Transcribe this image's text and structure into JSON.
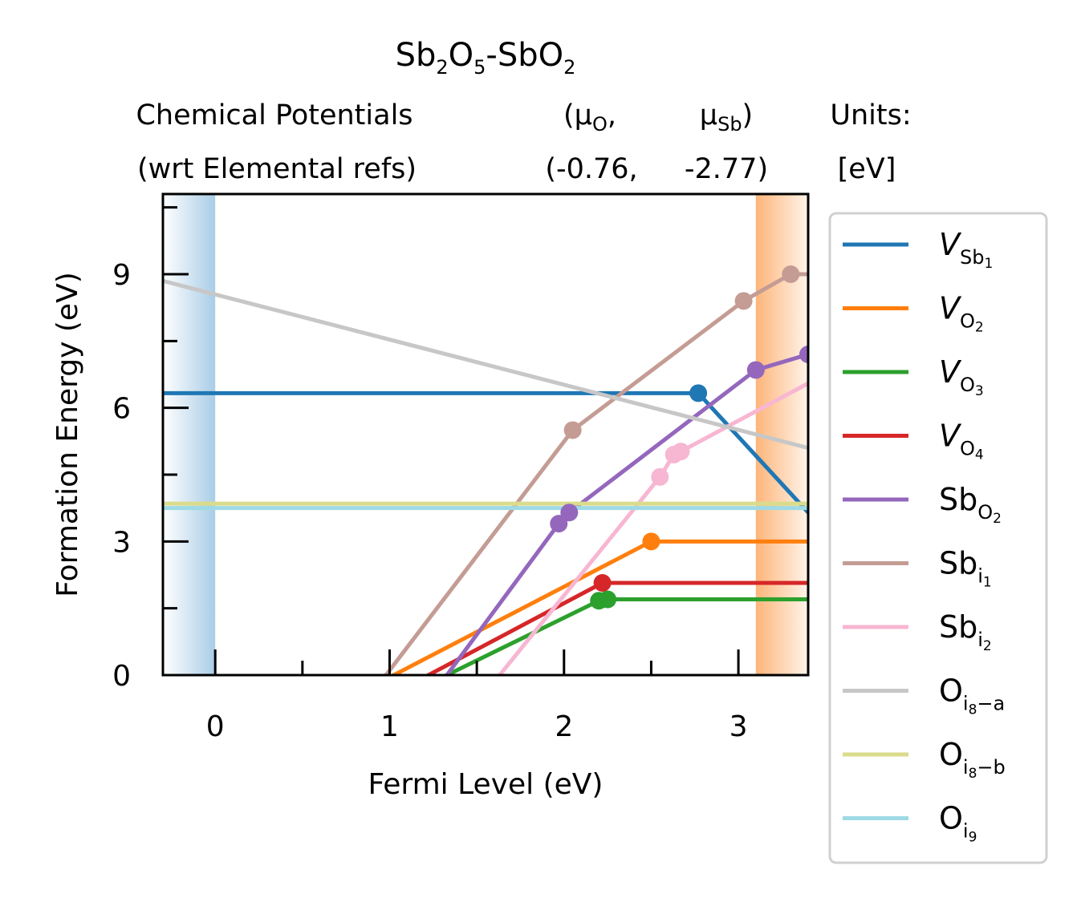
{
  "chart_data": {
    "type": "line",
    "title": {
      "base1": "Sb",
      "sub1": "2",
      "base2": "O",
      "sub2": "5",
      "base3": "-SbO",
      "sub3": "2"
    },
    "header": {
      "col1": [
        "Chemical Potentials",
        "(wrt Elemental refs)"
      ],
      "col2_line1": {
        "text": "(μ",
        "sub": "O",
        "tail": ","
      },
      "col2_line2": "(-0.76,",
      "col3_line1": {
        "text": "μ",
        "sub": "Sb",
        "tail": ")"
      },
      "col3_line2": "-2.77)",
      "col4": [
        "Units:",
        "[eV]"
      ]
    },
    "xlabel": "Fermi Level (eV)",
    "ylabel": "Formation Energy (eV)",
    "xlim": [
      -0.3,
      3.4
    ],
    "ylim": [
      0,
      10.8
    ],
    "xticks": [
      0,
      1,
      2,
      3
    ],
    "yticks": [
      0,
      3,
      6,
      9
    ],
    "vbm": 0,
    "cbm": 3.1,
    "series": [
      {
        "name": {
          "base": "V",
          "italic": true,
          "sub": "Sb",
          "subsub": "1"
        },
        "color": "#1f77b4",
        "points": [
          [
            -0.3,
            6.33
          ],
          [
            2.77,
            6.33
          ],
          [
            3.4,
            3.65
          ]
        ],
        "markers": [
          [
            2.77,
            6.33
          ]
        ]
      },
      {
        "name": {
          "base": "V",
          "italic": true,
          "sub": "O",
          "subsub": "2"
        },
        "color": "#ff7f0e",
        "points": [
          [
            0.95,
            -0.15
          ],
          [
            2.5,
            3.0
          ],
          [
            3.4,
            3.0
          ]
        ],
        "markers": [
          [
            2.5,
            3.0
          ]
        ]
      },
      {
        "name": {
          "base": "V",
          "italic": true,
          "sub": "O",
          "subsub": "3"
        },
        "color": "#2ca02c",
        "points": [
          [
            1.25,
            -0.15
          ],
          [
            2.2,
            1.67
          ],
          [
            2.25,
            1.7
          ],
          [
            3.4,
            1.7
          ]
        ],
        "markers": [
          [
            2.2,
            1.67
          ],
          [
            2.25,
            1.7
          ]
        ]
      },
      {
        "name": {
          "base": "V",
          "italic": true,
          "sub": "O",
          "subsub": "4"
        },
        "color": "#d62728",
        "points": [
          [
            1.15,
            -0.15
          ],
          [
            2.22,
            2.07
          ],
          [
            3.4,
            2.07
          ]
        ],
        "markers": [
          [
            2.22,
            2.07
          ]
        ]
      },
      {
        "name": {
          "base": "Sb",
          "italic": false,
          "sub": "O",
          "subsub": "2"
        },
        "color": "#9467bd",
        "points": [
          [
            1.3,
            -0.15
          ],
          [
            1.97,
            3.4
          ],
          [
            2.03,
            3.65
          ],
          [
            3.1,
            6.85
          ],
          [
            3.4,
            7.2
          ]
        ],
        "markers": [
          [
            1.97,
            3.4
          ],
          [
            2.03,
            3.65
          ],
          [
            3.1,
            6.85
          ],
          [
            3.4,
            7.2
          ]
        ]
      },
      {
        "name": {
          "base": "Sb",
          "italic": false,
          "sub": "i",
          "subsub": "1"
        },
        "color": "#c49c94",
        "points": [
          [
            0.95,
            -0.15
          ],
          [
            2.05,
            5.5
          ],
          [
            3.03,
            8.4
          ],
          [
            3.3,
            9.0
          ],
          [
            3.4,
            9.0
          ]
        ],
        "markers": [
          [
            2.05,
            5.5
          ],
          [
            3.03,
            8.4
          ],
          [
            3.3,
            9.0
          ]
        ]
      },
      {
        "name": {
          "base": "Sb",
          "italic": false,
          "sub": "i",
          "subsub": "2"
        },
        "color": "#f7b6d2",
        "points": [
          [
            1.6,
            -0.15
          ],
          [
            2.55,
            4.45
          ],
          [
            2.63,
            4.95
          ],
          [
            2.67,
            5.02
          ],
          [
            3.4,
            6.55
          ]
        ],
        "markers": [
          [
            2.55,
            4.45
          ],
          [
            2.63,
            4.95
          ],
          [
            2.67,
            5.02
          ]
        ]
      },
      {
        "name": {
          "base": "O",
          "italic": false,
          "sub": "i",
          "subsub": "8",
          "tail": "−a"
        },
        "color": "#c7c7c7",
        "points": [
          [
            -0.3,
            8.85
          ],
          [
            3.4,
            5.1
          ]
        ],
        "markers": []
      },
      {
        "name": {
          "base": "O",
          "italic": false,
          "sub": "i",
          "subsub": "8",
          "tail": "−b"
        },
        "color": "#dbdb8d",
        "points": [
          [
            -0.3,
            3.85
          ],
          [
            3.4,
            3.85
          ]
        ],
        "markers": []
      },
      {
        "name": {
          "base": "O",
          "italic": false,
          "sub": "i",
          "subsub": "9"
        },
        "color": "#9edae5",
        "points": [
          [
            -0.3,
            3.75
          ],
          [
            3.4,
            3.75
          ]
        ],
        "markers": []
      }
    ]
  }
}
